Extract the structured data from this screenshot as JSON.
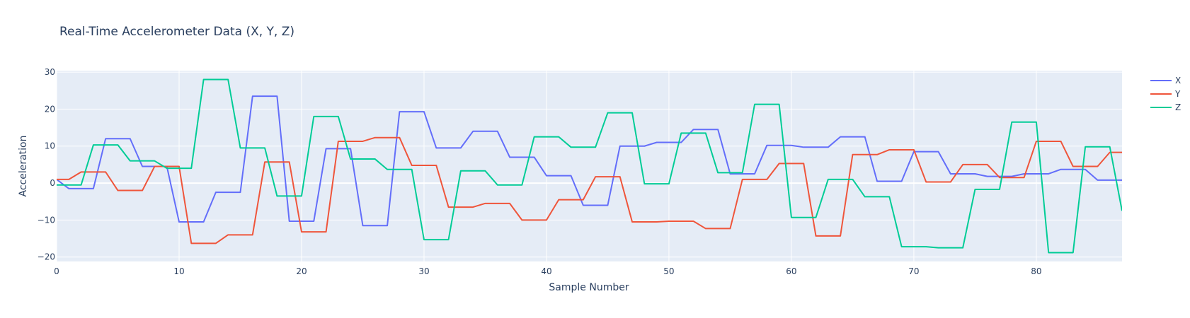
{
  "chart_data": {
    "type": "line",
    "title": "Real-Time Accelerometer Data (X, Y, Z)",
    "xlabel": "Sample Number",
    "ylabel": "Acceleration",
    "xlim": [
      0,
      87
    ],
    "ylim": [
      -21.2,
      30.4
    ],
    "x_ticks": [
      0,
      10,
      20,
      30,
      40,
      50,
      60,
      70,
      80
    ],
    "y_ticks": [
      -20,
      -10,
      0,
      10,
      20,
      30
    ],
    "grid": true,
    "legend_position": "right",
    "x": [
      0,
      1,
      2,
      3,
      4,
      5,
      6,
      7,
      8,
      9,
      10,
      11,
      12,
      13,
      14,
      15,
      16,
      17,
      18,
      19,
      20,
      21,
      22,
      23,
      24,
      25,
      26,
      27,
      28,
      29,
      30,
      31,
      32,
      33,
      34,
      35,
      36,
      37,
      38,
      39,
      40,
      41,
      42,
      43,
      44,
      45,
      46,
      47,
      48,
      49,
      50,
      51,
      52,
      53,
      54,
      55,
      56,
      57,
      58,
      59,
      60,
      61,
      62,
      63,
      64,
      65,
      66,
      67,
      68,
      69,
      70,
      71,
      72,
      73,
      74,
      75,
      76,
      77,
      78,
      79,
      80,
      81,
      82,
      83,
      84,
      85,
      86,
      87
    ],
    "series": [
      {
        "name": "X",
        "color": "#636efa",
        "values": [
          1,
          -1.5,
          -1.5,
          -1.5,
          12,
          12,
          12,
          4.5,
          4.5,
          4.5,
          -10.5,
          -10.5,
          -10.5,
          -2.5,
          -2.5,
          -2.5,
          23.5,
          23.5,
          23.5,
          -10.3,
          -10.3,
          -10.3,
          9.3,
          9.3,
          9.3,
          -11.5,
          -11.5,
          -11.5,
          19.3,
          19.3,
          19.3,
          9.5,
          9.5,
          9.5,
          14,
          14,
          14,
          7,
          7,
          7,
          2,
          2,
          2,
          -6,
          -6,
          -6,
          10,
          10,
          10,
          11,
          11,
          11,
          14.5,
          14.5,
          14.5,
          2.5,
          2.5,
          2.5,
          10.2,
          10.2,
          10.2,
          9.7,
          9.7,
          9.7,
          12.5,
          12.5,
          12.5,
          0.5,
          0.5,
          0.5,
          8.5,
          8.5,
          8.5,
          2.5,
          2.5,
          2.5,
          1.8,
          1.8,
          1.8,
          2.5,
          2.5,
          2.5,
          3.7,
          3.7,
          3.7,
          0.8,
          0.8,
          0.8
        ]
      },
      {
        "name": "Y",
        "color": "#ef553b",
        "values": [
          1,
          1,
          3,
          3,
          3,
          -2,
          -2,
          -2,
          4.5,
          4.5,
          4.5,
          -16.3,
          -16.3,
          -16.3,
          -14,
          -14,
          -14,
          5.7,
          5.7,
          5.7,
          -13.2,
          -13.2,
          -13.2,
          11.3,
          11.3,
          11.3,
          12.3,
          12.3,
          12.3,
          4.8,
          4.8,
          4.8,
          -6.5,
          -6.5,
          -6.5,
          -5.5,
          -5.5,
          -5.5,
          -10,
          -10,
          -10,
          -4.5,
          -4.5,
          -4.5,
          1.7,
          1.7,
          1.7,
          -10.5,
          -10.5,
          -10.5,
          -10.3,
          -10.3,
          -10.3,
          -12.3,
          -12.3,
          -12.3,
          1,
          1,
          1,
          5.3,
          5.3,
          5.3,
          -14.3,
          -14.3,
          -14.3,
          7.7,
          7.7,
          7.7,
          9,
          9,
          9,
          0.3,
          0.3,
          0.3,
          5,
          5,
          5,
          1.5,
          1.5,
          1.5,
          11.3,
          11.3,
          11.3,
          4.5,
          4.5,
          4.5,
          8.3,
          8.3
        ]
      },
      {
        "name": "Z",
        "color": "#00cc96",
        "values": [
          -0.5,
          -0.5,
          -0.5,
          10.3,
          10.3,
          10.3,
          6,
          6,
          6,
          4,
          4,
          4,
          28,
          28,
          28,
          9.5,
          9.5,
          9.5,
          -3.5,
          -3.5,
          -3.5,
          18,
          18,
          18,
          6.5,
          6.5,
          6.5,
          3.7,
          3.7,
          3.7,
          -15.3,
          -15.3,
          -15.3,
          3.3,
          3.3,
          3.3,
          -0.5,
          -0.5,
          -0.5,
          12.5,
          12.5,
          12.5,
          9.7,
          9.7,
          9.7,
          19,
          19,
          19,
          -0.2,
          -0.2,
          -0.2,
          13.5,
          13.5,
          13.5,
          2.8,
          2.8,
          2.8,
          21.3,
          21.3,
          21.3,
          -9.3,
          -9.3,
          -9.3,
          1,
          1,
          1,
          -3.7,
          -3.7,
          -3.7,
          -17.2,
          -17.2,
          -17.2,
          -17.5,
          -17.5,
          -17.5,
          -1.7,
          -1.7,
          -1.7,
          16.5,
          16.5,
          16.5,
          -18.8,
          -18.8,
          -18.8,
          9.8,
          9.8,
          9.8,
          -7.5
        ]
      }
    ]
  }
}
